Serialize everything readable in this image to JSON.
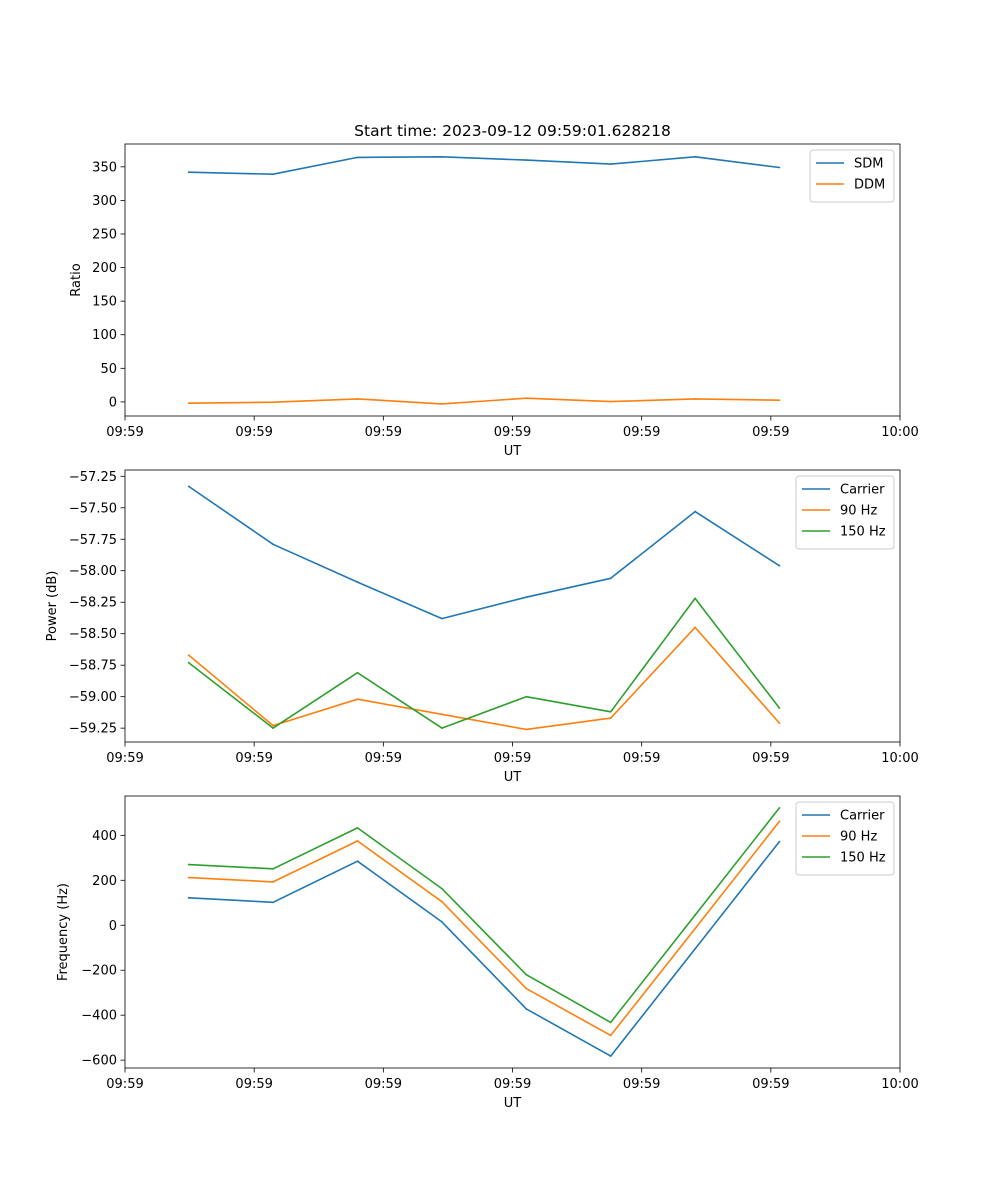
{
  "colors": {
    "blue": "#1f77b4",
    "orange": "#ff7f0e",
    "green": "#2ca02c"
  },
  "chart_data": [
    {
      "type": "line",
      "title": "Start time: 2023-09-12 09:59:01.628218",
      "xlabel": "UT",
      "ylabel": "Ratio",
      "xlim": [
        0,
        9
      ],
      "ylim": [
        -21,
        384
      ],
      "xticks": [
        {
          "v": 0,
          "label": "09:59"
        },
        {
          "v": 1.5,
          "label": "09:59"
        },
        {
          "v": 3,
          "label": "09:59"
        },
        {
          "v": 4.5,
          "label": "09:59"
        },
        {
          "v": 6,
          "label": "09:59"
        },
        {
          "v": 7.5,
          "label": "09:59"
        },
        {
          "v": 9,
          "label": "10:00"
        }
      ],
      "yticks": [
        {
          "v": 0,
          "label": "0"
        },
        {
          "v": 50,
          "label": "50"
        },
        {
          "v": 100,
          "label": "100"
        },
        {
          "v": 150,
          "label": "150"
        },
        {
          "v": 200,
          "label": "200"
        },
        {
          "v": 250,
          "label": "250"
        },
        {
          "v": 300,
          "label": "300"
        },
        {
          "v": 350,
          "label": "350"
        }
      ],
      "x": [
        0.74,
        1.72,
        2.7,
        3.68,
        4.66,
        5.64,
        6.62,
        7.6
      ],
      "series": [
        {
          "name": "SDM",
          "color": "blue",
          "values": [
            342,
            339,
            364,
            365,
            360,
            354,
            365,
            349
          ]
        },
        {
          "name": "DDM",
          "color": "orange",
          "values": [
            -2,
            -0.5,
            4.5,
            -3,
            5.5,
            0.5,
            4.5,
            2.5
          ]
        }
      ],
      "legend": "top-right"
    },
    {
      "type": "line",
      "title": "",
      "xlabel": "UT",
      "ylabel": "Power (dB)",
      "xlim": [
        0,
        9
      ],
      "ylim": [
        -59.36,
        -57.2
      ],
      "xticks": [
        {
          "v": 0,
          "label": "09:59"
        },
        {
          "v": 1.5,
          "label": "09:59"
        },
        {
          "v": 3,
          "label": "09:59"
        },
        {
          "v": 4.5,
          "label": "09:59"
        },
        {
          "v": 6,
          "label": "09:59"
        },
        {
          "v": 7.5,
          "label": "09:59"
        },
        {
          "v": 9,
          "label": "10:00"
        }
      ],
      "yticks": [
        {
          "v": -57.25,
          "label": "−57.25"
        },
        {
          "v": -57.5,
          "label": "−57.50"
        },
        {
          "v": -57.75,
          "label": "−57.75"
        },
        {
          "v": -58.0,
          "label": "−58.00"
        },
        {
          "v": -58.25,
          "label": "−58.25"
        },
        {
          "v": -58.5,
          "label": "−58.50"
        },
        {
          "v": -58.75,
          "label": "−58.75"
        },
        {
          "v": -59.0,
          "label": "−59.00"
        },
        {
          "v": -59.25,
          "label": "−59.25"
        }
      ],
      "x": [
        0.74,
        1.72,
        2.7,
        3.68,
        4.66,
        5.64,
        6.62,
        7.6
      ],
      "series": [
        {
          "name": "Carrier",
          "color": "blue",
          "values": [
            -57.33,
            -57.79,
            -58.09,
            -58.38,
            -58.21,
            -58.06,
            -57.53,
            -57.96
          ]
        },
        {
          "name": "90 Hz",
          "color": "orange",
          "values": [
            -58.67,
            -59.23,
            -59.02,
            -59.14,
            -59.26,
            -59.17,
            -58.45,
            -59.21
          ]
        },
        {
          "name": "150 Hz",
          "color": "green",
          "values": [
            -58.73,
            -59.25,
            -58.81,
            -59.25,
            -59.0,
            -59.12,
            -58.22,
            -59.09
          ]
        }
      ],
      "legend": "top-right"
    },
    {
      "type": "line",
      "title": "",
      "xlabel": "UT",
      "ylabel": "Frequency (Hz)",
      "xlim": [
        0,
        9
      ],
      "ylim": [
        -635,
        575
      ],
      "xticks": [
        {
          "v": 0,
          "label": "09:59"
        },
        {
          "v": 1.5,
          "label": "09:59"
        },
        {
          "v": 3,
          "label": "09:59"
        },
        {
          "v": 4.5,
          "label": "09:59"
        },
        {
          "v": 6,
          "label": "09:59"
        },
        {
          "v": 7.5,
          "label": "09:59"
        },
        {
          "v": 9,
          "label": "10:00"
        }
      ],
      "yticks": [
        {
          "v": -600,
          "label": "−600"
        },
        {
          "v": -400,
          "label": "−400"
        },
        {
          "v": -200,
          "label": "−200"
        },
        {
          "v": 0,
          "label": "0"
        },
        {
          "v": 200,
          "label": "200"
        },
        {
          "v": 400,
          "label": "400"
        }
      ],
      "x": [
        0.74,
        1.72,
        2.7,
        3.68,
        4.66,
        5.64,
        6.62,
        7.6
      ],
      "series": [
        {
          "name": "Carrier",
          "color": "blue",
          "values": [
            122,
            102,
            285,
            15,
            -372,
            -582,
            -105,
            372
          ]
        },
        {
          "name": "90 Hz",
          "color": "orange",
          "values": [
            212,
            193,
            375,
            105,
            -282,
            -490,
            -15,
            462
          ]
        },
        {
          "name": "150 Hz",
          "color": "green",
          "values": [
            270,
            251,
            433,
            163,
            -220,
            -432,
            45,
            522
          ]
        }
      ],
      "legend": "top-right"
    }
  ]
}
